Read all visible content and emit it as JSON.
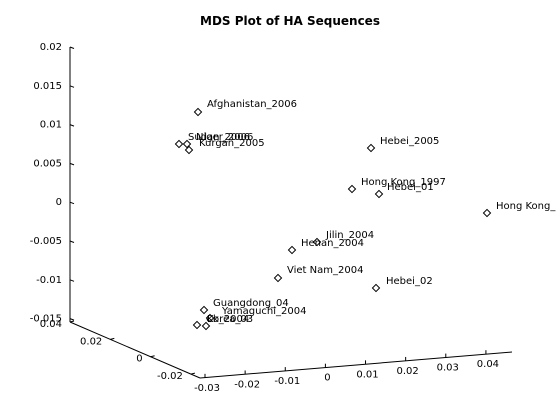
{
  "chart_data": {
    "type": "scatter",
    "title": "MDS Plot of HA Sequences",
    "projection": "3d",
    "grid": false,
    "legend": "none",
    "z_ticks": [
      "0.02",
      "0.015",
      "0.01",
      "0.005",
      "0",
      "-0.005",
      "-0.01",
      "-0.015"
    ],
    "y_ticks": [
      "0.04",
      "0.02",
      "0",
      "-0.02"
    ],
    "x_ticks": [
      "-0.03",
      "-0.02",
      "-0.01",
      "0",
      "0.01",
      "0.02",
      "0.03",
      "0.04"
    ],
    "points": [
      {
        "label": "Afghanistan_2006",
        "z": 0.0115
      },
      {
        "label": "Sudan_2006",
        "z": 0.0074
      },
      {
        "label": "Niger_2006",
        "z": 0.0073
      },
      {
        "label": "Kurgan_2005",
        "z": 0.0066
      },
      {
        "label": "Hebei_2005",
        "z": 0.0068
      },
      {
        "label": "Hong Kong_1997",
        "z": 0.0015
      },
      {
        "label": "Hebei_01",
        "z": 0.001
      },
      {
        "label": "Hong Kong_",
        "z": -0.0015
      },
      {
        "label": "Jilin_2004",
        "z": -0.005
      },
      {
        "label": "Henan_2004",
        "z": -0.006
      },
      {
        "label": "Viet Nam_2004",
        "z": -0.0097
      },
      {
        "label": "Hebei_02",
        "z": -0.011
      },
      {
        "label": "Guangdong_04",
        "z": -0.014
      },
      {
        "label": "Yamaguchi_2004",
        "z": -0.015
      },
      {
        "label": "Korea_03",
        "z": -0.0158
      },
      {
        "label": "Ck_2004",
        "z": -0.0158
      }
    ]
  }
}
